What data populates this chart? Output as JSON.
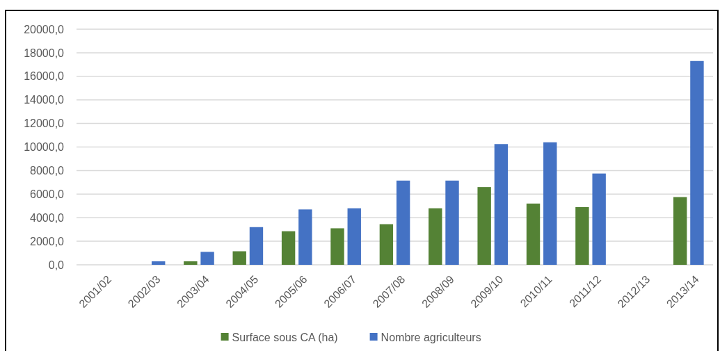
{
  "chart_data": {
    "type": "bar",
    "categories": [
      "2001/02",
      "2002/03",
      "2003/04",
      "2004/05",
      "2005/06",
      "2006/07",
      "2007/08",
      "2008/09",
      "2009/10",
      "2010/11",
      "2011/12",
      "2012/13",
      "2013/14"
    ],
    "series": [
      {
        "name": "Surface sous CA (ha)",
        "color": "#548235",
        "values": [
          null,
          null,
          300,
          1150,
          2850,
          3100,
          3450,
          4800,
          6600,
          5200,
          4900,
          null,
          5750
        ]
      },
      {
        "name": "Nombre agriculteurs",
        "color": "#4472c4",
        "values": [
          null,
          300,
          1100,
          3200,
          4700,
          4800,
          7150,
          7150,
          10250,
          10400,
          7750,
          null,
          17300
        ]
      }
    ],
    "ylim": [
      0,
      20000
    ],
    "yticks": [
      {
        "value": 0,
        "label": "0,0"
      },
      {
        "value": 2000,
        "label": "2000,0"
      },
      {
        "value": 4000,
        "label": "4000,0"
      },
      {
        "value": 6000,
        "label": "6000,0"
      },
      {
        "value": 8000,
        "label": "8000,0"
      },
      {
        "value": 10000,
        "label": "10000,0"
      },
      {
        "value": 12000,
        "label": "12000,0"
      },
      {
        "value": 14000,
        "label": "14000,0"
      },
      {
        "value": 16000,
        "label": "16000,0"
      },
      {
        "value": 18000,
        "label": "18000,0"
      },
      {
        "value": 20000,
        "label": "20000,0"
      }
    ],
    "grid": "y",
    "legend": "bottom"
  }
}
